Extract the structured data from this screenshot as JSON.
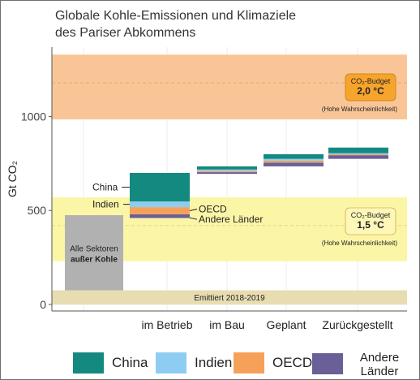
{
  "title_line1": "Globale Kohle-Emissionen und Klimaziele",
  "title_line2": "des Pariser Abkommens",
  "chart_data": {
    "type": "bar",
    "stacked": true,
    "ylabel": "Gt CO₂",
    "ylim": [
      -35,
      1370
    ],
    "yticks": [
      0,
      500,
      1000
    ],
    "grid": true,
    "legend_position": "bottom",
    "categories": [
      "im Betrieb",
      "im Bau",
      "Geplant",
      "Zurückgestellt"
    ],
    "series": [
      {
        "name": "Andere Länder",
        "color": "#6a5f96",
        "values": [
          20,
          10,
          20,
          20
        ]
      },
      {
        "name": "OECD",
        "color": "#f6a15a",
        "values": [
          38,
          5,
          10,
          5
        ]
      },
      {
        "name": "Indien",
        "color": "#8ecdf2",
        "values": [
          30,
          8,
          10,
          5
        ]
      },
      {
        "name": "China",
        "color": "#14897f",
        "values": [
          152,
          17,
          25,
          30
        ]
      }
    ],
    "stack_base": [
      460,
      695,
      735,
      775
    ],
    "annotations": {
      "non_coal": {
        "label_line1": "Alle Sektoren",
        "label_line2": "außer Kohle",
        "from": 75,
        "to": 475,
        "color": "#b1b1b1"
      },
      "budget_2": {
        "title": "CO₂-Budget",
        "value": "2,0 °C",
        "note": "(Hohe Wahrscheinlichkeit)",
        "from": 985,
        "to": 1330,
        "color": "#f9c597",
        "mid_line": 1180,
        "box_color": "#f7a42c"
      },
      "budget_15": {
        "title": "CO₂-Budget",
        "value": "1,5 °C",
        "note": "(Hohe Wahrscheinlichkeit)",
        "from": 230,
        "to": 570,
        "color": "#fbf5a6",
        "mid_line": 420,
        "box_color": "#fdf8b8"
      },
      "emitted": {
        "label": "Emittiert 2018-2019",
        "from": 0,
        "to": 75,
        "color": "#e8dcb1"
      },
      "country_labels": {
        "china": "China",
        "indien": "Indien",
        "oecd": "OECD",
        "andere": "Andere Länder"
      }
    }
  },
  "legend": [
    {
      "label": "China",
      "color": "#14897f"
    },
    {
      "label": "Indien",
      "color": "#8ecdf2"
    },
    {
      "label": "OECD",
      "color": "#f6a15a"
    },
    {
      "label": "Andere Länder",
      "color": "#6a5f96"
    }
  ]
}
